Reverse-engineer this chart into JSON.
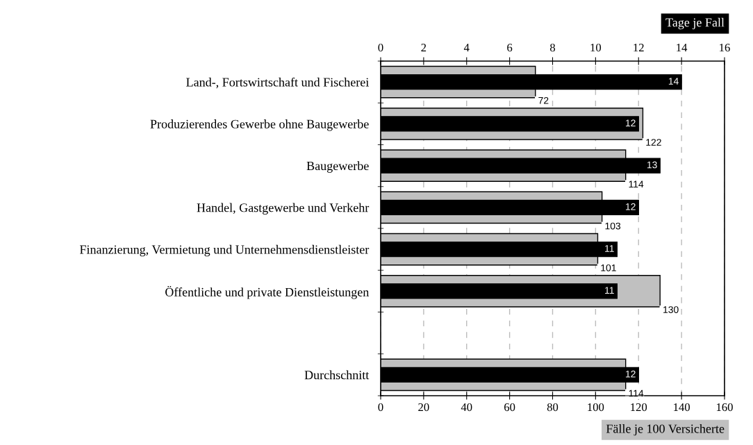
{
  "chart_data": {
    "type": "bar",
    "orientation": "horizontal",
    "categories": [
      "Land-, Fortswirtschaft und Fischerei",
      "Produzierendes Gewerbe ohne Baugewerbe",
      "Baugewerbe",
      "Handel, Gastgewerbe und Verkehr",
      "Finanzierung, Vermietung und Unternehmensdienstleister",
      "Öffentliche und private Dienstleistungen",
      null,
      "Durchschnitt"
    ],
    "series": [
      {
        "color": "#c0c0c0",
        "values": [
          72,
          122,
          114,
          103,
          101,
          130,
          null,
          114
        ]
      },
      {
        "color": "#000000",
        "axis": "x2",
        "values": [
          14,
          12,
          13,
          12,
          11,
          11,
          null,
          12
        ]
      }
    ],
    "xlabel": "Fälle je 100 Versicherte",
    "x2label": "Tage je Fall",
    "xlim": [
      0,
      160
    ],
    "xticks": [
      0,
      20,
      40,
      60,
      80,
      100,
      120,
      140,
      160
    ],
    "x2lim": [
      0,
      16
    ],
    "x2ticks": [
      0,
      2,
      4,
      6,
      8,
      10,
      12,
      14,
      16
    ],
    "grid": "x",
    "data_labels": true,
    "legend": false
  }
}
